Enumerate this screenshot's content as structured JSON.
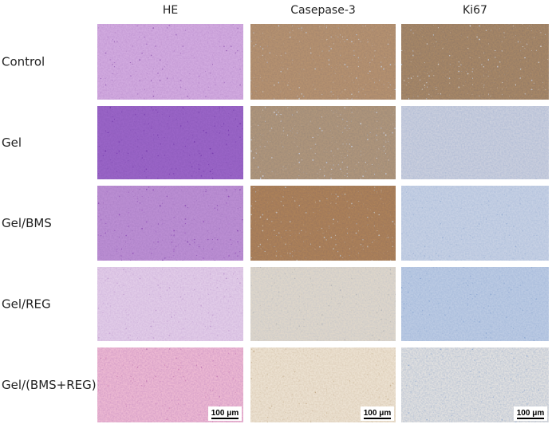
{
  "columns": [
    "HE",
    "Casepase-3",
    "Ki67"
  ],
  "rows": [
    "Control",
    "Gel",
    "Gel/BMS",
    "Gel/REG",
    "Gel/(BMS+REG)"
  ],
  "scale_bars": [
    "100 μm",
    "100 μm",
    "100 μm"
  ]
}
